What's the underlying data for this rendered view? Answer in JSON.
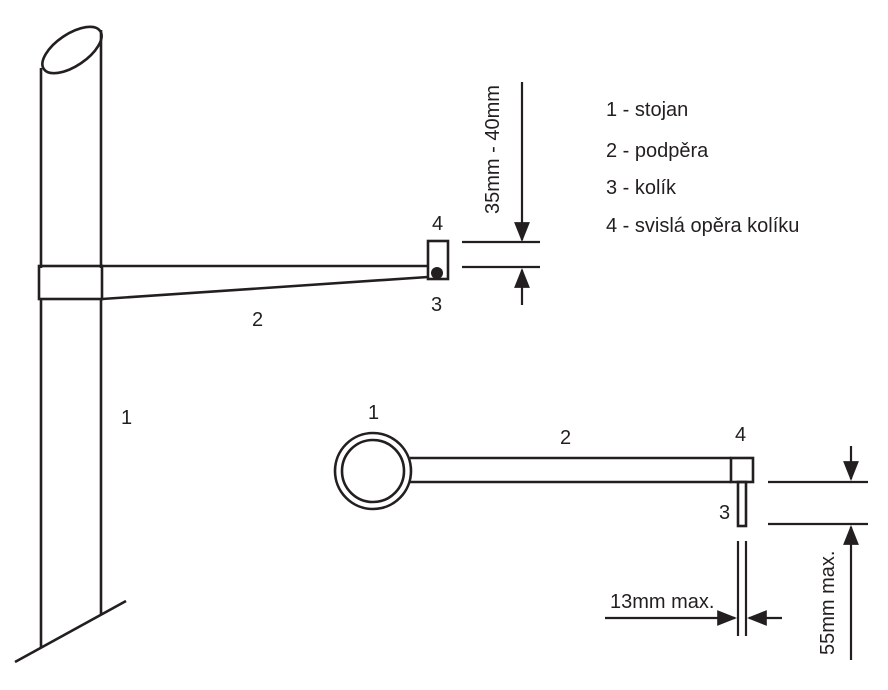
{
  "legend": [
    "1 - stojan",
    "2 - podpěra",
    "3 - kolík",
    "4 - svislá opěra kolíku"
  ],
  "side_view": {
    "label_stand": "1",
    "label_arm": "2",
    "label_pin": "3",
    "label_rest": "4",
    "dimension": "35mm - 40mm"
  },
  "top_view": {
    "label_stand": "1",
    "label_arm": "2",
    "label_pin": "3",
    "label_rest": "4",
    "dimension_width": "13mm max.",
    "dimension_length": "55mm max."
  },
  "colors": {
    "ink": "#231f20",
    "background": "#ffffff"
  }
}
